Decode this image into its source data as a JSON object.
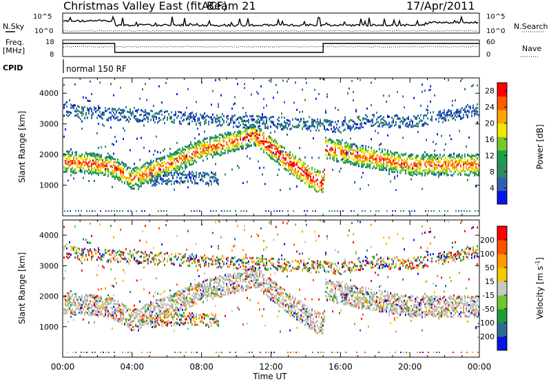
{
  "header": {
    "title": "Christmas Valley East (fitACF)",
    "beam": "Beam 21",
    "date": "17/Apr/2011"
  },
  "noise_panel": {
    "left_label": "N.Sky",
    "right_label": "N.Search",
    "left_ticks": [
      "10^5",
      "10^0"
    ],
    "right_ticks": [
      "10^5",
      "10^0"
    ]
  },
  "freq_panel": {
    "left_label_line1": "Freq.",
    "left_label_line2": "[MHz]",
    "right_label": "Nave",
    "left_ticks": [
      "18",
      "8"
    ],
    "right_ticks": [
      "60",
      "0"
    ]
  },
  "cpid_panel": {
    "label": "CPID",
    "mode_text": "normal 150 RF"
  },
  "colors": {
    "power_scale": [
      "#0a14e6",
      "#2e5fb4",
      "#2f8a5e",
      "#1aa04a",
      "#7cc62c",
      "#f0e800",
      "#ffa500",
      "#ff5a00",
      "#ff0000"
    ],
    "velocity_scale": [
      "#0a14e6",
      "#2f6a9a",
      "#1f9a3a",
      "#6cc72c",
      "#c8c8c8",
      "#f5c800",
      "#ff9a00",
      "#ff5000",
      "#ff0000"
    ],
    "ground_scatter": "#bdbdbd"
  },
  "chart_data": [
    {
      "type": "heatmap",
      "panel": "power",
      "ylabel": "Slant Range [km]",
      "ylim": [
        0,
        4500
      ],
      "yticks": [
        "1000",
        "2000",
        "3000",
        "4000"
      ],
      "xlim": [
        0,
        24
      ],
      "colorbar_label": "Power [dB]",
      "colorbar_ticks": [
        "4",
        "8",
        "12",
        "16",
        "20",
        "24",
        "28"
      ],
      "colorbar_range": [
        0,
        30
      ],
      "scatter_bands": [
        {
          "name": "main echo",
          "x": [
            0.0,
            1.5,
            2.8,
            4.0,
            6.0,
            8.0,
            10.0,
            11.0,
            13.0,
            14.5,
            15.0,
            15.1,
            17.0,
            20.0,
            24.0
          ],
          "y": [
            1750,
            1700,
            1600,
            1200,
            1650,
            2150,
            2450,
            2650,
            1750,
            1150,
            1050,
            2200,
            1950,
            1650,
            1650
          ]
        },
        {
          "name": "upper echo",
          "x": [
            0.0,
            1.5,
            2.8,
            16.0,
            17.5,
            20.0,
            24.0
          ],
          "y": [
            3450,
            3350,
            3300,
            2900,
            3100,
            3050,
            3450
          ]
        },
        {
          "name": "lower echo",
          "x": [
            5.0,
            7.0,
            9.0
          ],
          "y": [
            1150,
            1250,
            1200
          ]
        }
      ]
    },
    {
      "type": "heatmap",
      "panel": "velocity",
      "ylabel": "Slant Range [km]",
      "ylim": [
        0,
        4500
      ],
      "yticks": [
        "1000",
        "2000",
        "3000",
        "4000"
      ],
      "xlim": [
        0,
        24
      ],
      "xticks": [
        "00:00",
        "04:00",
        "08:00",
        "12:00",
        "16:00",
        "20:00",
        "00:00"
      ],
      "xlabel": "Time UT",
      "colorbar_label": "Velocity [m s^-1]",
      "colorbar_ticks": [
        "200",
        "100",
        "50",
        "15",
        "-15",
        "-50",
        "-100",
        "-200"
      ],
      "colorbar_range": [
        -250,
        250
      ]
    }
  ]
}
